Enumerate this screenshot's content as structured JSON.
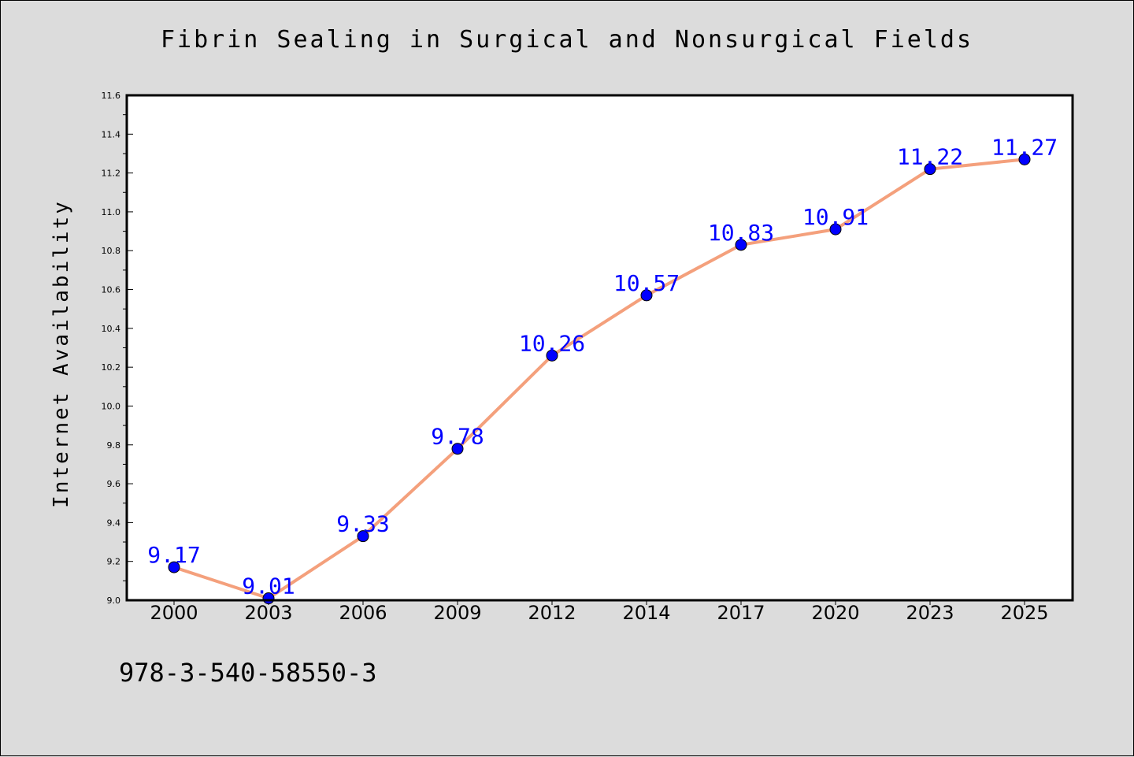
{
  "chart_data": {
    "type": "line",
    "title": "Fibrin Sealing in Surgical and Nonsurgical Fields",
    "xlabel": "",
    "ylabel": "Internet Availability",
    "categories": [
      "2000",
      "2003",
      "2006",
      "2009",
      "2012",
      "2014",
      "2017",
      "2020",
      "2023",
      "2025"
    ],
    "series": [
      {
        "values": [
          9.17,
          9.01,
          9.33,
          9.78,
          10.26,
          10.57,
          10.83,
          10.91,
          11.22,
          11.27
        ],
        "line_color": "#f4a07c",
        "marker_color": "#0000ff"
      }
    ],
    "data_labels": [
      "9.17",
      "9.01",
      "9.33",
      "9.78",
      "10.26",
      "10.57",
      "10.83",
      "10.91",
      "11.22",
      "11.27"
    ],
    "ylim": [
      9.0,
      11.6
    ],
    "y_ticks": [
      "9.0",
      "9.2",
      "9.4",
      "9.6",
      "9.8",
      "10.0",
      "10.2",
      "10.4",
      "10.6",
      "10.8",
      "11.0",
      "11.2",
      "11.4",
      "11.6"
    ],
    "grid": false,
    "legend": "none",
    "background_color": "#dcdcdc",
    "plot_background": "#ffffff",
    "label_color": "#0000ff"
  },
  "footnote": "978-3-540-58550-3"
}
